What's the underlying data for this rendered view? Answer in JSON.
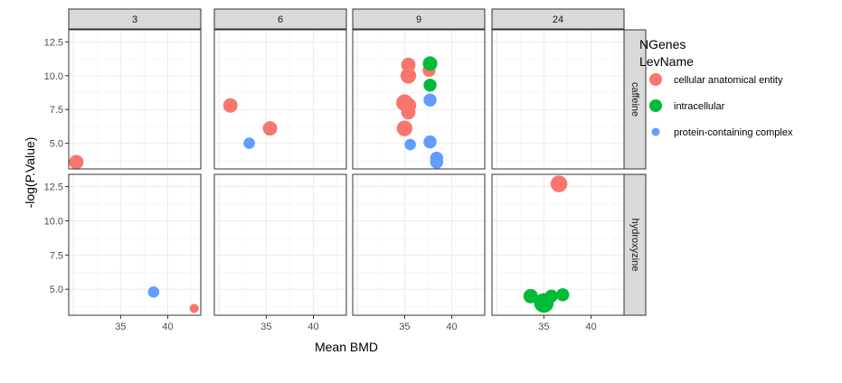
{
  "chart_data": {
    "type": "scatter",
    "xlabel": "Mean BMD",
    "ylabel": "-log(P.Value)",
    "col_facets": [
      "3",
      "6",
      "9",
      "24"
    ],
    "row_facets": [
      "caffeine",
      "hydroxyzine"
    ],
    "xlim": [
      29.5,
      43.5
    ],
    "ylim": [
      3.1,
      13.4
    ],
    "xticks": [
      35,
      40
    ],
    "yticks": [
      5.0,
      7.5,
      10.0,
      12.5
    ],
    "ytick_labels": [
      "5.0",
      "7.5",
      "10.0",
      "12.5"
    ],
    "grid": true,
    "legend": {
      "position": "right",
      "title_lines": [
        "NGenes",
        "LevName"
      ],
      "items": [
        {
          "label": "cellular anatomical entity",
          "color": "#F8766D"
        },
        {
          "label": "intracellular",
          "color": "#00BA38"
        },
        {
          "label": "protein-containing complex",
          "color": "#619CFF"
        }
      ]
    },
    "series": [
      {
        "name": "cellular anatomical entity",
        "color": "#F8766D",
        "points": [
          {
            "col": "3",
            "row": "caffeine",
            "x": 30.3,
            "y": 3.6,
            "n": 4
          },
          {
            "col": "6",
            "row": "caffeine",
            "x": 31.2,
            "y": 7.8,
            "n": 4
          },
          {
            "col": "6",
            "row": "caffeine",
            "x": 35.4,
            "y": 6.1,
            "n": 4
          },
          {
            "col": "9",
            "row": "caffeine",
            "x": 35.4,
            "y": 10.8,
            "n": 4
          },
          {
            "col": "9",
            "row": "caffeine",
            "x": 35.4,
            "y": 10.0,
            "n": 5
          },
          {
            "col": "9",
            "row": "caffeine",
            "x": 37.6,
            "y": 10.4,
            "n": 3
          },
          {
            "col": "9",
            "row": "caffeine",
            "x": 35.0,
            "y": 8.0,
            "n": 6
          },
          {
            "col": "9",
            "row": "caffeine",
            "x": 35.4,
            "y": 7.8,
            "n": 5
          },
          {
            "col": "9",
            "row": "caffeine",
            "x": 35.4,
            "y": 7.3,
            "n": 4
          },
          {
            "col": "9",
            "row": "caffeine",
            "x": 35.0,
            "y": 6.1,
            "n": 5
          },
          {
            "col": "3",
            "row": "hydroxyzine",
            "x": 42.8,
            "y": 3.6,
            "n": 1
          },
          {
            "col": "24",
            "row": "hydroxyzine",
            "x": 36.6,
            "y": 12.7,
            "n": 6
          }
        ]
      },
      {
        "name": "intracellular",
        "color": "#00BA38",
        "points": [
          {
            "col": "9",
            "row": "caffeine",
            "x": 37.7,
            "y": 10.9,
            "n": 4
          },
          {
            "col": "9",
            "row": "caffeine",
            "x": 37.7,
            "y": 9.3,
            "n": 3
          },
          {
            "col": "24",
            "row": "hydroxyzine",
            "x": 33.6,
            "y": 4.5,
            "n": 4
          },
          {
            "col": "24",
            "row": "hydroxyzine",
            "x": 35.0,
            "y": 4.0,
            "n": 9
          },
          {
            "col": "24",
            "row": "hydroxyzine",
            "x": 35.8,
            "y": 4.5,
            "n": 3
          },
          {
            "col": "24",
            "row": "hydroxyzine",
            "x": 37.0,
            "y": 4.6,
            "n": 3
          }
        ]
      },
      {
        "name": "protein-containing complex",
        "color": "#619CFF",
        "points": [
          {
            "col": "6",
            "row": "caffeine",
            "x": 33.2,
            "y": 5.0,
            "n": 2
          },
          {
            "col": "9",
            "row": "caffeine",
            "x": 37.7,
            "y": 8.2,
            "n": 3
          },
          {
            "col": "9",
            "row": "caffeine",
            "x": 37.7,
            "y": 5.1,
            "n": 3
          },
          {
            "col": "9",
            "row": "caffeine",
            "x": 35.6,
            "y": 4.9,
            "n": 2
          },
          {
            "col": "9",
            "row": "caffeine",
            "x": 38.4,
            "y": 3.9,
            "n": 3
          },
          {
            "col": "9",
            "row": "caffeine",
            "x": 38.4,
            "y": 3.6,
            "n": 3
          },
          {
            "col": "3",
            "row": "hydroxyzine",
            "x": 38.5,
            "y": 4.8,
            "n": 2
          }
        ]
      }
    ]
  }
}
